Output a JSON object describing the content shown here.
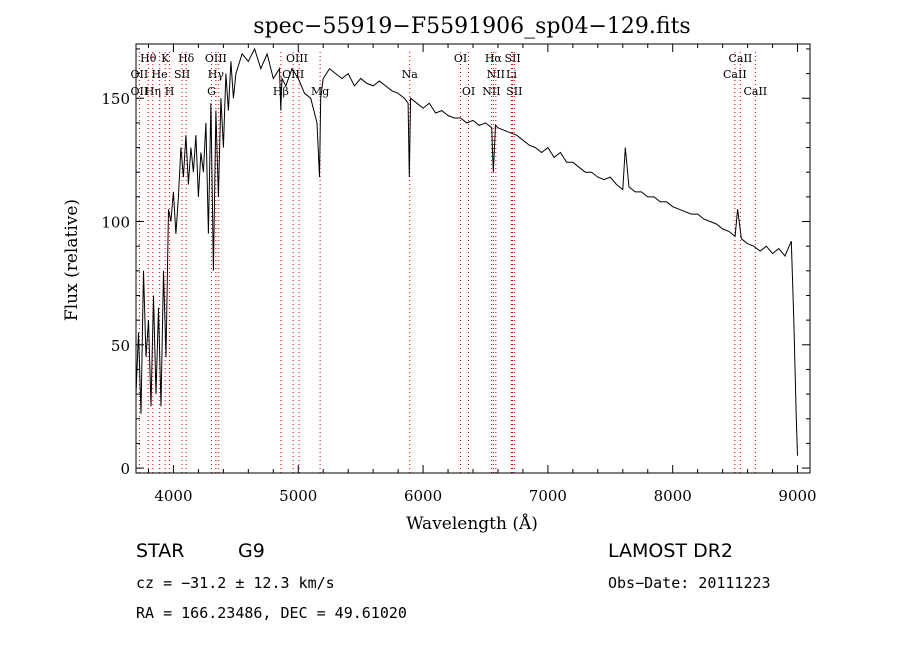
{
  "chart_data": {
    "type": "line",
    "title": "spec−55919−F5591906_sp04−129.fits",
    "xlabel": "Wavelength (Å)",
    "ylabel": "Flux (relative)",
    "xlim": [
      3700,
      9100
    ],
    "ylim": [
      -2,
      172
    ],
    "x_ticks": [
      4000,
      5000,
      6000,
      7000,
      8000,
      9000
    ],
    "y_ticks": [
      0,
      50,
      100,
      150
    ],
    "line_color": "#000000",
    "marker_color": "#cc0000",
    "series": [
      {
        "x": [
          3700,
          3720,
          3740,
          3760,
          3780,
          3800,
          3820,
          3840,
          3860,
          3880,
          3900,
          3920,
          3940,
          3960,
          3980,
          4000,
          4020,
          4040,
          4060,
          4080,
          4100,
          4120,
          4140,
          4160,
          4180,
          4200,
          4220,
          4240,
          4260,
          4280,
          4300,
          4320,
          4340,
          4360,
          4380,
          4400,
          4420,
          4440,
          4460,
          4480,
          4500,
          4550,
          4600,
          4650,
          4700,
          4750,
          4800,
          4850,
          4860,
          4870,
          4900,
          4950,
          5000,
          5050,
          5100,
          5150,
          5170,
          5180,
          5200,
          5250,
          5300,
          5350,
          5400,
          5450,
          5500,
          5550,
          5600,
          5650,
          5700,
          5750,
          5800,
          5850,
          5880,
          5890,
          5900,
          5950,
          6000,
          6050,
          6100,
          6150,
          6200,
          6250,
          6300,
          6350,
          6400,
          6450,
          6500,
          6550,
          6563,
          6580,
          6600,
          6650,
          6700,
          6750,
          6800,
          6850,
          6900,
          6950,
          7000,
          7050,
          7100,
          7150,
          7200,
          7250,
          7300,
          7350,
          7400,
          7450,
          7500,
          7550,
          7600,
          7620,
          7650,
          7700,
          7750,
          7800,
          7850,
          7900,
          7950,
          8000,
          8050,
          8100,
          8150,
          8200,
          8250,
          8300,
          8350,
          8400,
          8450,
          8500,
          8520,
          8550,
          8600,
          8650,
          8700,
          8750,
          8800,
          8850,
          8900,
          8950,
          8970,
          8990,
          9000
        ],
        "y": [
          30,
          55,
          22,
          80,
          45,
          60,
          25,
          70,
          30,
          65,
          25,
          80,
          45,
          105,
          100,
          112,
          95,
          110,
          130,
          118,
          135,
          115,
          130,
          120,
          135,
          110,
          128,
          120,
          140,
          95,
          148,
          80,
          145,
          110,
          150,
          130,
          160,
          145,
          165,
          150,
          160,
          168,
          165,
          170,
          162,
          168,
          158,
          162,
          145,
          158,
          155,
          162,
          158,
          152,
          150,
          140,
          118,
          150,
          158,
          162,
          160,
          158,
          160,
          155,
          158,
          156,
          155,
          157,
          155,
          153,
          152,
          150,
          148,
          118,
          150,
          148,
          146,
          148,
          144,
          145,
          143,
          142,
          142,
          140,
          141,
          139,
          140,
          138,
          120,
          139,
          138,
          137,
          136,
          135,
          133,
          131,
          130,
          128,
          130,
          126,
          128,
          124,
          124,
          122,
          120,
          120,
          118,
          117,
          118,
          115,
          113,
          130,
          114,
          112,
          112,
          110,
          110,
          108,
          108,
          106,
          105,
          104,
          103,
          103,
          101,
          100,
          99,
          97,
          96,
          94,
          105,
          93,
          91,
          90,
          88,
          90,
          87,
          89,
          86,
          92,
          60,
          20,
          5
        ]
      }
    ],
    "line_labels": [
      {
        "text": "Hθ",
        "x": 3798,
        "row": 1,
        "line_x": 3798
      },
      {
        "text": "K",
        "x": 3934,
        "row": 1,
        "line_x": 3934
      },
      {
        "text": "Hδ",
        "x": 4102,
        "row": 1,
        "line_x": 4102
      },
      {
        "text": "OIII",
        "x": 4340,
        "row": 1,
        "line_x": 4363
      },
      {
        "text": "OIII",
        "x": 4990,
        "row": 1,
        "line_x": 5007
      },
      {
        "text": "OI",
        "x": 6300,
        "row": 1,
        "line_x": 6300
      },
      {
        "text": "Hα",
        "x": 6563,
        "row": 1,
        "line_x": 6563
      },
      {
        "text": "SII",
        "x": 6717,
        "row": 1,
        "line_x": 6717
      },
      {
        "text": "CaII",
        "x": 8542,
        "row": 1,
        "line_x": 8542
      },
      {
        "text": "OII",
        "x": 3727,
        "row": 2,
        "line_x": 3727
      },
      {
        "text": "He",
        "x": 3889,
        "row": 2,
        "line_x": 3889
      },
      {
        "text": "SII",
        "x": 4069,
        "row": 2,
        "line_x": 4069
      },
      {
        "text": "Hγ",
        "x": 4340,
        "row": 2,
        "line_x": 4340
      },
      {
        "text": "OIII",
        "x": 4959,
        "row": 2,
        "line_x": 4959
      },
      {
        "text": "Na",
        "x": 5893,
        "row": 2,
        "line_x": 5893
      },
      {
        "text": "NII",
        "x": 6583,
        "row": 2,
        "line_x": 6583
      },
      {
        "text": "Li",
        "x": 6708,
        "row": 2,
        "line_x": 6708
      },
      {
        "text": "CaII",
        "x": 8498,
        "row": 2,
        "line_x": 8498
      },
      {
        "text": "OII",
        "x": 3727,
        "row": 3,
        "line_x": 3727
      },
      {
        "text": "Hη",
        "x": 3835,
        "row": 3,
        "line_x": 3835
      },
      {
        "text": "H",
        "x": 3969,
        "row": 3,
        "line_x": 3969
      },
      {
        "text": "G",
        "x": 4305,
        "row": 3,
        "line_x": 4305
      },
      {
        "text": "Hβ",
        "x": 4861,
        "row": 3,
        "line_x": 4861
      },
      {
        "text": "Mg",
        "x": 5175,
        "row": 3,
        "line_x": 5175
      },
      {
        "text": "OI",
        "x": 6364,
        "row": 3,
        "line_x": 6364
      },
      {
        "text": "NII",
        "x": 6548,
        "row": 3,
        "line_x": 6548
      },
      {
        "text": "SII",
        "x": 6731,
        "row": 3,
        "line_x": 6731
      },
      {
        "text": "CaII",
        "x": 8662,
        "row": 3,
        "line_x": 8662
      }
    ]
  },
  "info": {
    "class_label": "STAR",
    "subclass": "G9",
    "survey": "LAMOST DR2",
    "redshift": "cz = −31.2 ± 12.3 km/s",
    "obs_date": "Obs−Date: 20111223",
    "coords": "RA = 166.23486, DEC =  49.61020"
  }
}
